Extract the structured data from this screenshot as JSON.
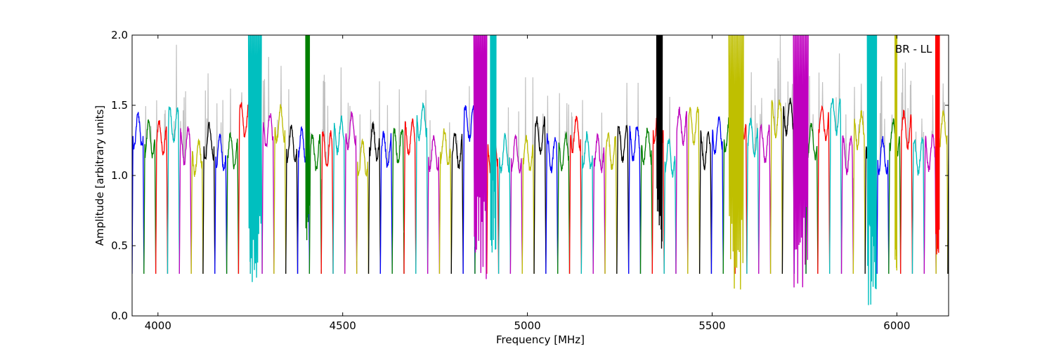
{
  "chart_data": {
    "type": "line",
    "title": "",
    "xlabel": "Frequency [MHz]",
    "ylabel": "Amplitude [arbitrary units]",
    "xlim": [
      3930,
      6140
    ],
    "ylim": [
      0.0,
      2.0
    ],
    "xticks": [
      4000,
      4500,
      5000,
      5500,
      6000
    ],
    "xtick_labels": [
      "4000",
      "4500",
      "5000",
      "5500",
      "6000"
    ],
    "yticks": [
      0.0,
      0.5,
      1.0,
      1.5,
      2.0
    ],
    "ytick_labels": [
      "0.0",
      "0.5",
      "1.0",
      "1.5",
      "2.0"
    ],
    "grid": false,
    "legend": "none",
    "annotation": "BR - LL",
    "color_cycle": [
      "#0000ff",
      "#008000",
      "#ff0000",
      "#00bfbf",
      "#bf00bf",
      "#bfbf00",
      "#000000"
    ],
    "raw_color": "#c0c0c0",
    "subband_width_mhz": 32,
    "subband_start_mhz": 3930,
    "spike_regions": [
      {
        "x": [
          4245,
          4280
        ],
        "color": "#00bfbf",
        "max": 2.0,
        "min": 0.17
      },
      {
        "x": [
          4400,
          4410
        ],
        "color": "#008000",
        "max": 2.0,
        "min": 0.5
      },
      {
        "x": [
          4855,
          4890
        ],
        "color": "#bf00bf",
        "max": 2.0,
        "min": 0.26
      },
      {
        "x": [
          4900,
          4915
        ],
        "color": "#00bfbf",
        "max": 2.0,
        "min": 0.4
      },
      {
        "x": [
          5350,
          5365
        ],
        "color": "#000000",
        "max": 2.0,
        "min": 0.45
      },
      {
        "x": [
          5545,
          5585
        ],
        "color": "#bfbf00",
        "max": 2.0,
        "min": 0.14
      },
      {
        "x": [
          5720,
          5760
        ],
        "color": "#bf00bf",
        "max": 2.0,
        "min": 0.2
      },
      {
        "x": [
          5920,
          5945
        ],
        "color": "#00bfbf",
        "max": 2.0,
        "min": 0.05
      },
      {
        "x": [
          5995,
          6000
        ],
        "color": "#bfbf00",
        "max": 2.0,
        "min": 0.3
      },
      {
        "x": [
          6105,
          6115
        ],
        "color": "#ff0000",
        "max": 2.0,
        "min": 0.4
      }
    ]
  }
}
